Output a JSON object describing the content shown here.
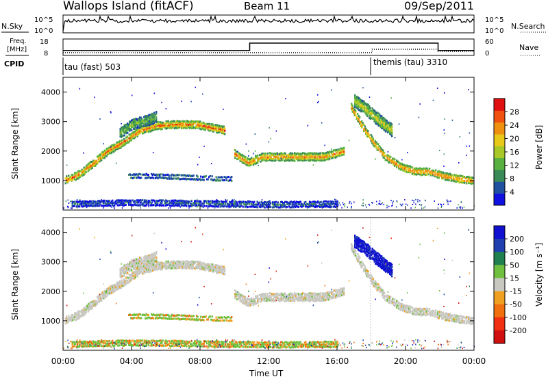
{
  "chart_data": {
    "type": "heatmap",
    "title": "Wallops Island (fitACF)",
    "beam": "Beam 11",
    "date": "09/Sep/2011",
    "xlabel": "Time UT",
    "x_ticks": [
      "00:00",
      "04:00",
      "08:00",
      "12:00",
      "16:00",
      "20:00",
      "00:00"
    ],
    "xlim_hours": [
      0,
      24
    ],
    "header_panels": {
      "nsky": {
        "label": "N.Sky",
        "right_label": "N.Search",
        "ticks_left": [
          "10^5",
          "10^0"
        ],
        "ticks_right": [
          "10^5",
          "10^0"
        ]
      },
      "freq": {
        "label_line1": "Freq.",
        "label_line2": "[MHz]",
        "right_label": "Nave",
        "ticks_left": [
          "18",
          "8"
        ],
        "ticks_right": [
          "60",
          "0"
        ],
        "freq_steps_hours": [
          0,
          10.9,
          21.9,
          24
        ],
        "freq_values": [
          11,
          15.5,
          11
        ]
      },
      "cpid": {
        "label": "CPID",
        "segments": [
          {
            "text": "tau (fast) 503",
            "start_hour": 0
          },
          {
            "text": "themis (tau) 3310",
            "start_hour": 18.05
          }
        ]
      }
    },
    "panels": [
      {
        "name": "power",
        "ylabel": "Slant Range [km]",
        "ylim_km": [
          0,
          4500
        ],
        "y_ticks": [
          1000,
          2000,
          3000,
          4000
        ],
        "colorbar_label": "Power [dB]",
        "colorbar_ticks": [
          "28",
          "24",
          "20",
          "16",
          "12",
          "8",
          "4"
        ],
        "colorbar_range": [
          0,
          32
        ],
        "colors": [
          "#1010e0",
          "#2050a0",
          "#3a8a58",
          "#58b040",
          "#a8c828",
          "#e8c818",
          "#f09010",
          "#f05010",
          "#e01010"
        ]
      },
      {
        "name": "velocity",
        "ylabel": "Slant Range [km]",
        "ylim_km": [
          0,
          4500
        ],
        "y_ticks": [
          1000,
          2000,
          3000,
          4000
        ],
        "colorbar_label": "Velocity [m s⁻¹]",
        "colorbar_ticks": [
          "200",
          "100",
          "50",
          "15",
          "-15",
          "-50",
          "-100",
          "-200"
        ],
        "colors": [
          "#1010d0",
          "#2040b0",
          "#208050",
          "#70c040",
          "#c8c8c0",
          "#f0a020",
          "#f07010",
          "#f03010",
          "#d01010"
        ]
      }
    ],
    "echo_bands": [
      {
        "x": [
          0.1,
          0.9,
          1.8,
          2.6,
          3.5,
          4.5,
          5.4,
          6.5,
          7.7,
          8.6,
          9.4
        ],
        "y": [
          1000,
          1200,
          1600,
          2000,
          2300,
          2700,
          2850,
          2900,
          2900,
          2800,
          2700
        ],
        "thickness_km": 220,
        "power": 26,
        "velocity_class": "low"
      },
      {
        "x": [
          3.3,
          4.0,
          5.0,
          5.4
        ],
        "y": [
          2600,
          2900,
          3050,
          3150
        ],
        "thickness_km": 320,
        "power": 14,
        "velocity_class": "low"
      },
      {
        "x": [
          3.8,
          5.5,
          7.5,
          9.8
        ],
        "y": [
          1150,
          1150,
          1100,
          1050
        ],
        "thickness_km": 110,
        "power": 12,
        "velocity_class": "neg_small"
      },
      {
        "x": [
          10.0,
          10.8,
          11.6,
          13.3,
          15.2,
          16.4
        ],
        "y": [
          1900,
          1600,
          1800,
          1800,
          1800,
          2000
        ],
        "thickness_km": 230,
        "power": 24,
        "velocity_class": "low"
      },
      {
        "x": [
          16.8,
          17.3,
          17.6,
          18.1,
          18.8,
          19.6,
          20.5,
          21.3,
          22.2,
          23.1,
          23.9
        ],
        "y": [
          3500,
          3000,
          2700,
          2300,
          1800,
          1500,
          1300,
          1300,
          1150,
          1050,
          1000
        ],
        "thickness_km": 200,
        "power": 27,
        "velocity_class": "low"
      },
      {
        "x": [
          17.0,
          17.7,
          18.5,
          19.2
        ],
        "y": [
          3700,
          3400,
          3000,
          2700
        ],
        "thickness_km": 380,
        "power": 18,
        "velocity_class": "high_pos"
      },
      {
        "x": [
          0.5,
          4.0,
          8.0,
          12.0,
          16.0
        ],
        "y": [
          200,
          250,
          220,
          180,
          200
        ],
        "thickness_km": 150,
        "power": 6,
        "velocity_class": "neg_small"
      }
    ]
  }
}
